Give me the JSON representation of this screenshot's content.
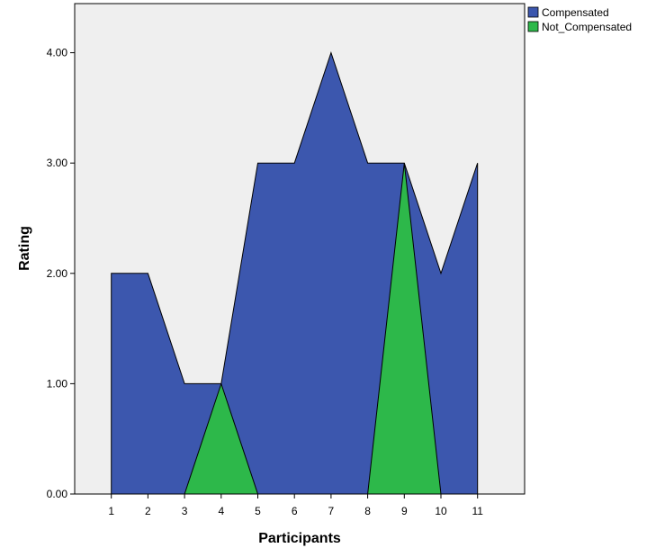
{
  "chart_data": {
    "type": "area",
    "xlabel": "Participants",
    "ylabel": "Rating",
    "x": [
      1,
      2,
      3,
      4,
      5,
      6,
      7,
      8,
      9,
      10,
      11
    ],
    "x_tick_labels": [
      "1",
      "2",
      "3",
      "4",
      "5",
      "6",
      "7",
      "8",
      "9",
      "10",
      "11"
    ],
    "y_ticks": [
      0,
      1,
      2,
      3,
      4
    ],
    "y_tick_labels": [
      "0.00",
      "1.00",
      "2.00",
      "3.00",
      "4.00"
    ],
    "ylim": [
      0,
      4.4
    ],
    "xlim": [
      0,
      12
    ],
    "grid": false,
    "legend_position": "top-right",
    "background_color": "#efefef",
    "series": [
      {
        "name": "Compensated",
        "color": "#3c57ae",
        "values": [
          2,
          2,
          1,
          1,
          3,
          3,
          4,
          3,
          3,
          2,
          3
        ]
      },
      {
        "name": "Not_Compensated",
        "color": "#2db84a",
        "values": [
          0,
          0,
          0,
          1,
          0,
          0,
          0,
          0,
          3,
          0,
          0
        ]
      }
    ]
  }
}
